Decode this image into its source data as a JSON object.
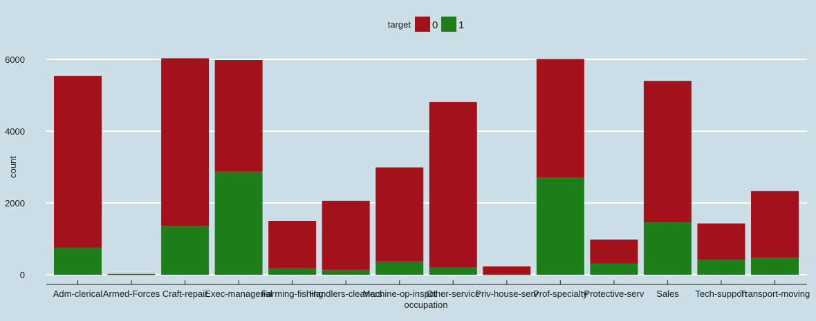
{
  "chart_data": {
    "type": "bar",
    "stacked": true,
    "xlabel": "occupation",
    "ylabel": "count",
    "ylim": [
      0,
      6000
    ],
    "yticks": [
      0,
      2000,
      4000,
      6000
    ],
    "grid": "horizontal",
    "legend": {
      "title": "target",
      "placement": "top-center"
    },
    "categories": [
      "Adm-clerical",
      "Armed-Forces",
      "Craft-repair",
      "Exec-managerial",
      "Farming-fishing",
      "Handlers-cleaners",
      "Machine-op-inspct",
      "Other-service",
      "Priv-house-serv",
      "Prof-specialty",
      "Protective-serv",
      "Sales",
      "Tech-support",
      "Transport-moving"
    ],
    "series": [
      {
        "name": "0",
        "color": "#a3111b",
        "values": [
          4780,
          22,
          4670,
          3110,
          1320,
          1920,
          2620,
          4610,
          230,
          3300,
          670,
          3940,
          1010,
          1850
        ]
      },
      {
        "name": "1",
        "color": "#1e7e1a",
        "values": [
          760,
          1,
          1360,
          2870,
          180,
          140,
          370,
          200,
          2,
          2710,
          310,
          1460,
          420,
          480
        ]
      }
    ]
  }
}
